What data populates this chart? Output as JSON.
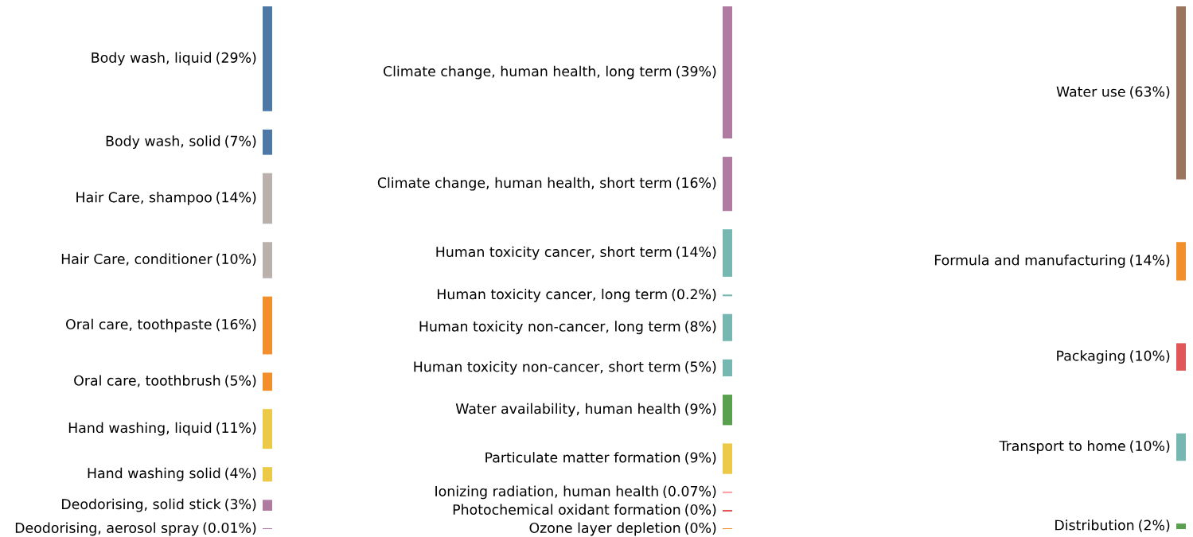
{
  "chart_data": [
    {
      "type": "other",
      "categories": [
        "Body wash, liquid",
        "Body wash, solid",
        "Hair Care, shampoo",
        "Hair Care, conditioner",
        "Oral care, toothpaste",
        "Oral care, toothbrush",
        "Hand washing, liquid",
        "Hand washing solid",
        "Deodorising, solid stick",
        "Deodorising, aerosol spray"
      ],
      "values": [
        29,
        7,
        14,
        10,
        16,
        5,
        11,
        4,
        3,
        0.01
      ],
      "value_labels": [
        "(29%)",
        "(7%)",
        "(14%)",
        "(10%)",
        "(16%)",
        "(5%)",
        "(11%)",
        "(4%)",
        "(3%)",
        "(0.01%)"
      ],
      "colors": [
        "#4e79a7",
        "#4e79a7",
        "#bab0ac",
        "#bab0ac",
        "#f28e2b",
        "#f28e2b",
        "#edc948",
        "#edc948",
        "#b07aa1",
        "#b07aa1"
      ]
    },
    {
      "type": "other",
      "categories": [
        "Climate change, human health, long term",
        "Climate change, human health, short term",
        "Human toxicity cancer, short term",
        "Human toxicity cancer, long term",
        "Human toxicity non-cancer, long term",
        "Human toxicity non-cancer, short term",
        "Water availability, human health",
        "Particulate matter formation",
        "Ionizing radiation, human health",
        "Photochemical oxidant formation",
        "Ozone layer depletion"
      ],
      "values": [
        39,
        16,
        14,
        0.2,
        8,
        5,
        9,
        9,
        0.07,
        0,
        0
      ],
      "value_labels": [
        "(39%)",
        "(16%)",
        "(14%)",
        "(0.2%)",
        "(8%)",
        "(5%)",
        "(9%)",
        "(9%)",
        "(0.07%)",
        "(0%)",
        "(0%)"
      ],
      "colors": [
        "#b07aa1",
        "#b07aa1",
        "#76b7b2",
        "#76b7b2",
        "#76b7b2",
        "#76b7b2",
        "#59a14f",
        "#edc948",
        "#ff9da7",
        "#e15759",
        "#f28e2b"
      ]
    },
    {
      "type": "other",
      "categories": [
        "Water use",
        "Formula and manufacturing",
        "Packaging",
        "Transport to home",
        "Distribution"
      ],
      "values": [
        63,
        14,
        10,
        10,
        2
      ],
      "value_labels": [
        "(63%)",
        "(14%)",
        "(10%)",
        "(10%)",
        "(2%)"
      ],
      "colors": [
        "#9c755f",
        "#f28e2b",
        "#e15759",
        "#76b7b2",
        "#59a14f"
      ]
    }
  ]
}
